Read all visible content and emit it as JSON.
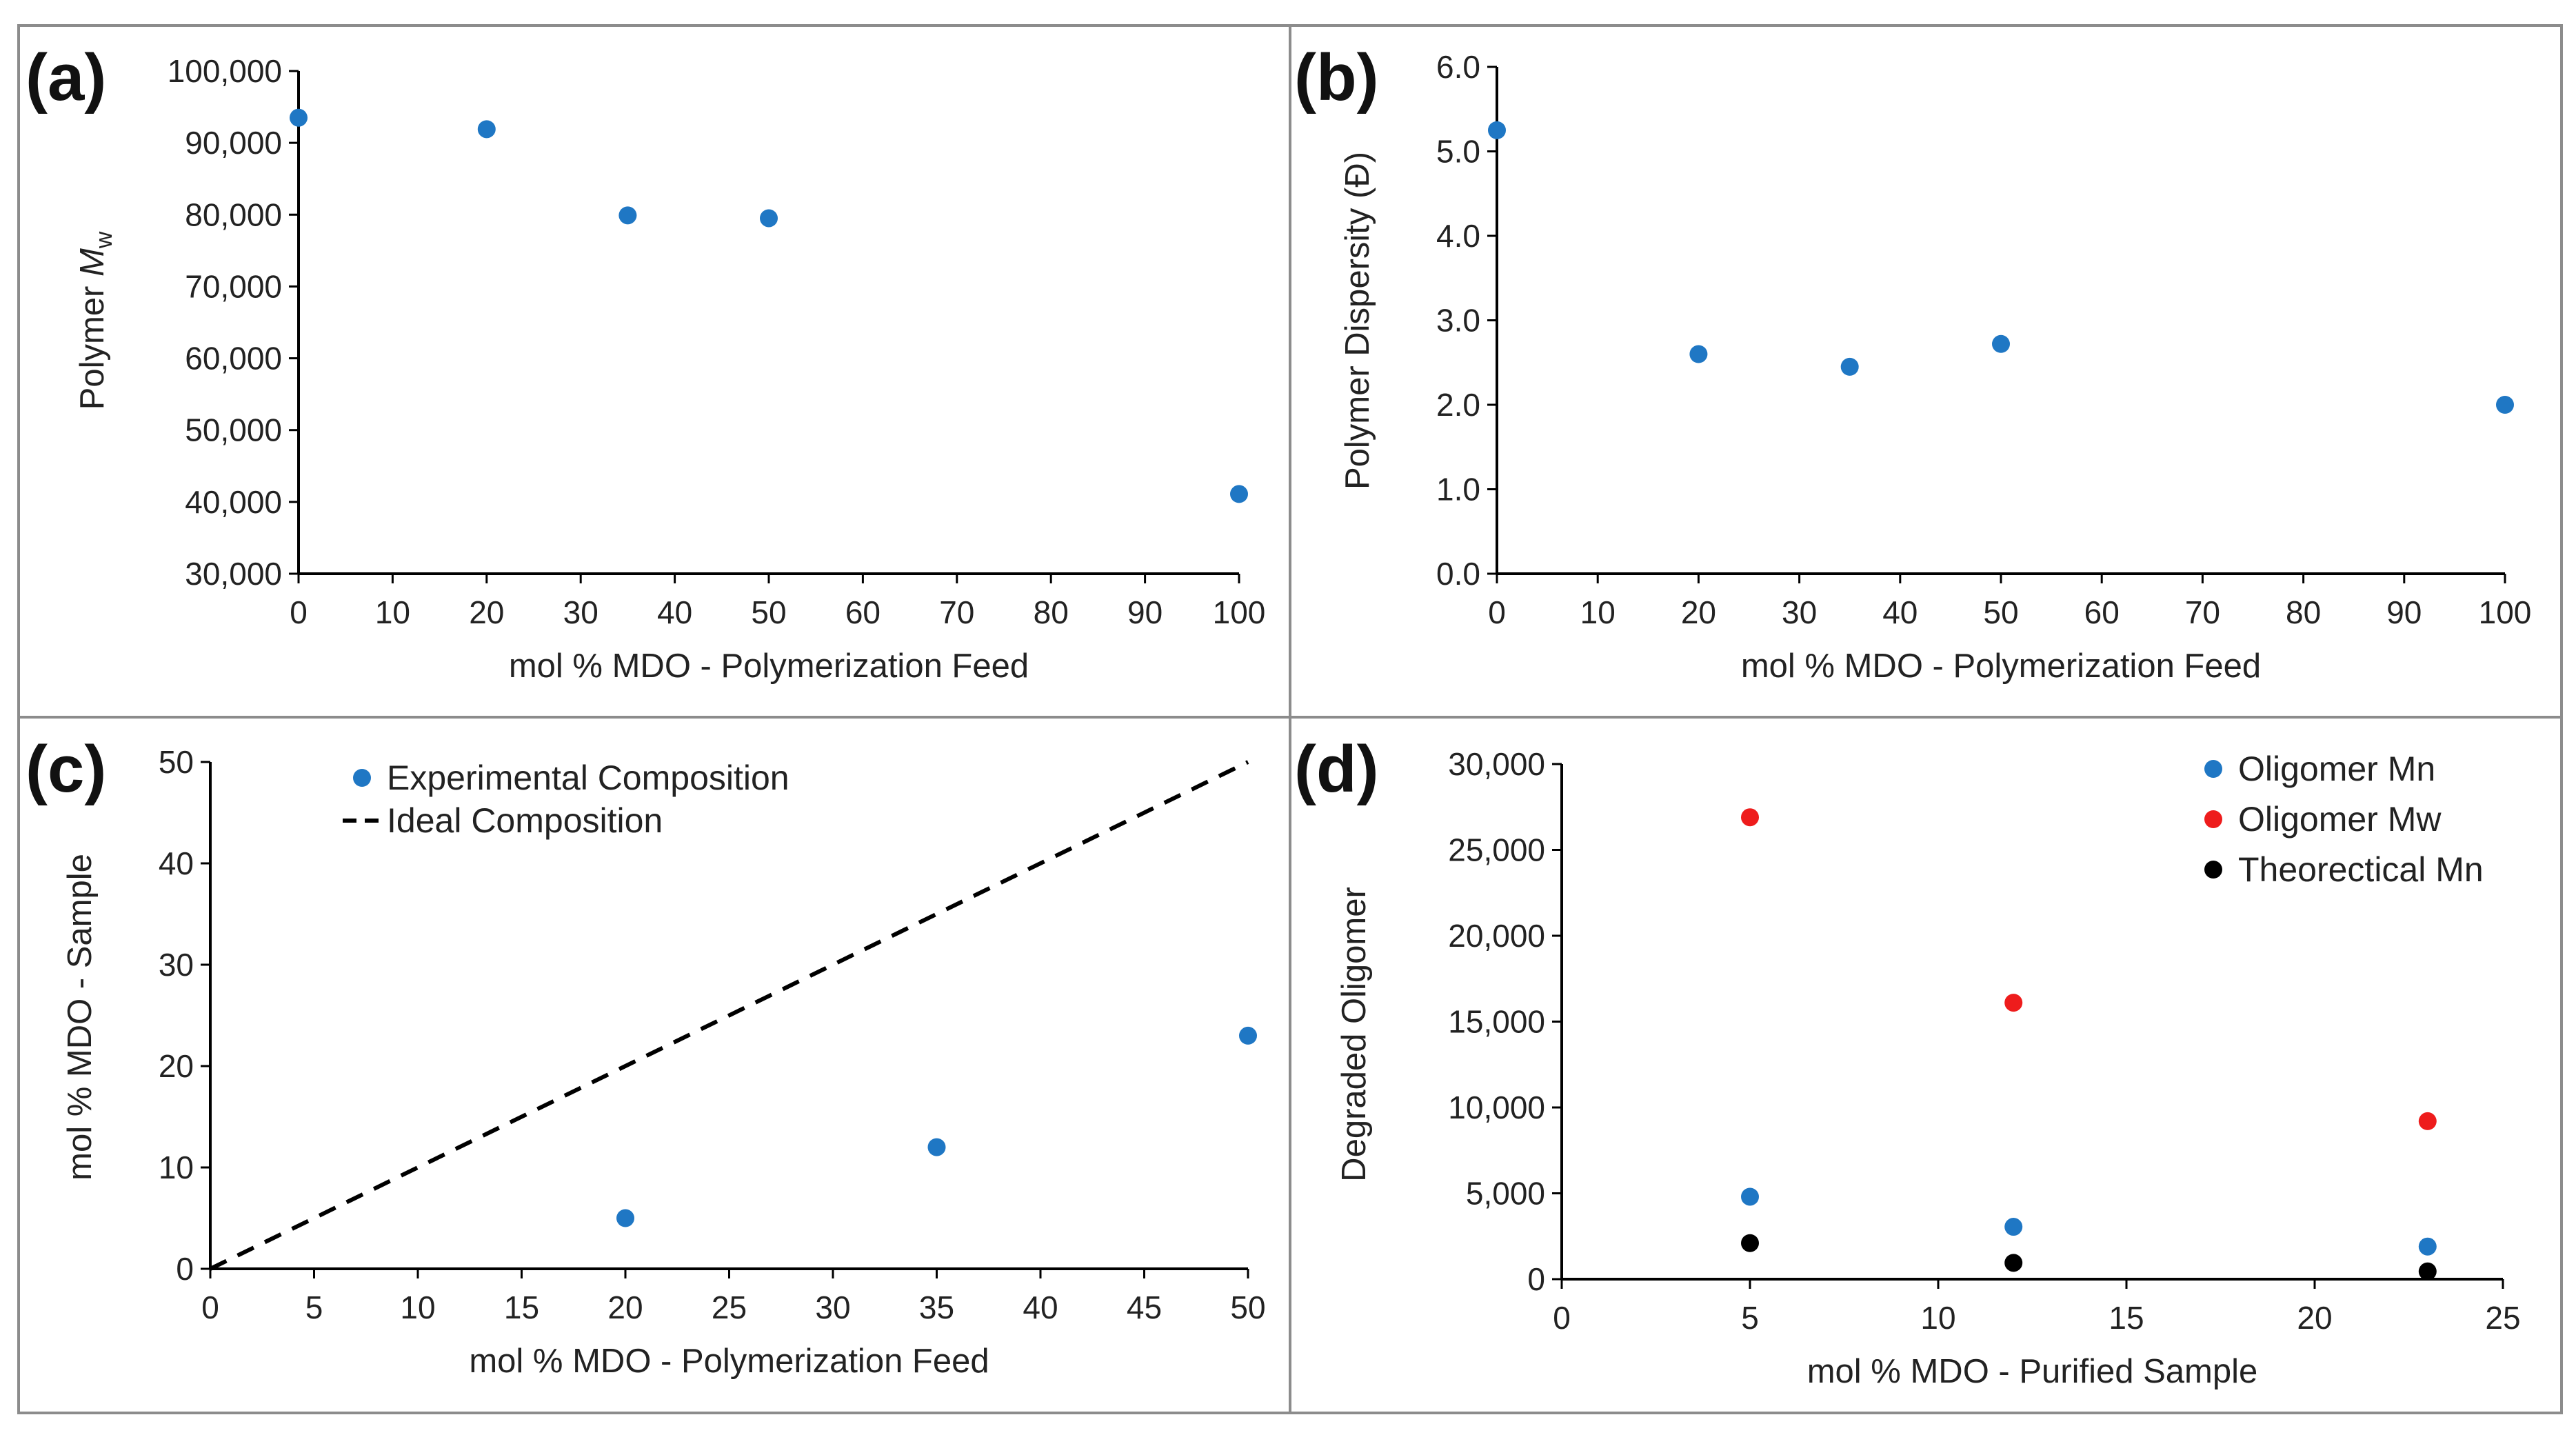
{
  "chart_data": [
    {
      "panel": "(a)",
      "type": "scatter",
      "xlabel": "mol % MDO - Polymerization Feed",
      "ylabel_prefix": "Polymer ",
      "ylabel_var": "M",
      "ylabel_sub": "w",
      "xlim": [
        0,
        100
      ],
      "ylim": [
        30000,
        100000
      ],
      "xticks": [
        "0",
        "10",
        "20",
        "30",
        "40",
        "50",
        "60",
        "70",
        "80",
        "90",
        "100"
      ],
      "yticks": [
        "30,000",
        "40,000",
        "50,000",
        "60,000",
        "70,000",
        "80,000",
        "90,000",
        "100,000"
      ],
      "series": [
        {
          "name": "Polymer Mw",
          "color": "#1f77c4",
          "points": [
            [
              0,
              93500
            ],
            [
              20,
              91900
            ],
            [
              35,
              79900
            ],
            [
              50,
              79500
            ],
            [
              100,
              41100
            ]
          ]
        }
      ]
    },
    {
      "panel": "(b)",
      "type": "scatter",
      "xlabel": "mol % MDO - Polymerization Feed",
      "ylabel": "Polymer Dispersity (Đ)",
      "xlim": [
        0,
        100
      ],
      "ylim": [
        0,
        6
      ],
      "xticks": [
        "0",
        "10",
        "20",
        "30",
        "40",
        "50",
        "60",
        "70",
        "80",
        "90",
        "100"
      ],
      "yticks": [
        "0.0",
        "1.0",
        "2.0",
        "3.0",
        "4.0",
        "5.0",
        "6.0"
      ],
      "series": [
        {
          "name": "Polymer Dispersity",
          "color": "#1f77c4",
          "points": [
            [
              0,
              5.25
            ],
            [
              20,
              2.6
            ],
            [
              35,
              2.45
            ],
            [
              50,
              2.72
            ],
            [
              100,
              2.0
            ]
          ]
        }
      ]
    },
    {
      "panel": "(c)",
      "type": "scatter",
      "xlabel": "mol % MDO - Polymerization Feed",
      "ylabel": "mol % MDO - Sample",
      "xlim": [
        0,
        50
      ],
      "ylim": [
        0,
        50
      ],
      "xticks": [
        "0",
        "5",
        "10",
        "15",
        "20",
        "25",
        "30",
        "35",
        "40",
        "45",
        "50"
      ],
      "yticks": [
        "0",
        "10",
        "20",
        "30",
        "40",
        "50"
      ],
      "series": [
        {
          "name": "Experimental Composition",
          "color": "#1f77c4",
          "points": [
            [
              20,
              5
            ],
            [
              35,
              12
            ],
            [
              50,
              23
            ]
          ]
        }
      ],
      "lines": [
        {
          "name": "Ideal Composition",
          "color": "#000000",
          "dashed": true,
          "points": [
            [
              0,
              0
            ],
            [
              50,
              50
            ]
          ]
        }
      ]
    },
    {
      "panel": "(d)",
      "type": "scatter",
      "xlabel": "mol % MDO - Purified Sample",
      "ylabel": "Degraded Oligomer",
      "xlim": [
        0,
        25
      ],
      "ylim": [
        0,
        30000
      ],
      "xticks": [
        "0",
        "5",
        "10",
        "15",
        "20",
        "25"
      ],
      "yticks": [
        "0",
        "5,000",
        "10,000",
        "15,000",
        "20,000",
        "25,000",
        "30,000"
      ],
      "series": [
        {
          "name": "Oligomer Mn",
          "color": "#1f77c4",
          "points": [
            [
              5,
              4800
            ],
            [
              12,
              3050
            ],
            [
              23,
              1900
            ]
          ]
        },
        {
          "name": "Oligomer Mw",
          "color": "#ee1c1c",
          "points": [
            [
              5,
              26900
            ],
            [
              12,
              16100
            ],
            [
              23,
              9200
            ]
          ]
        },
        {
          "name": "Theorectical Mn",
          "color": "#000000",
          "points": [
            [
              5,
              2100
            ],
            [
              12,
              950
            ],
            [
              23,
              450
            ]
          ]
        }
      ]
    }
  ]
}
